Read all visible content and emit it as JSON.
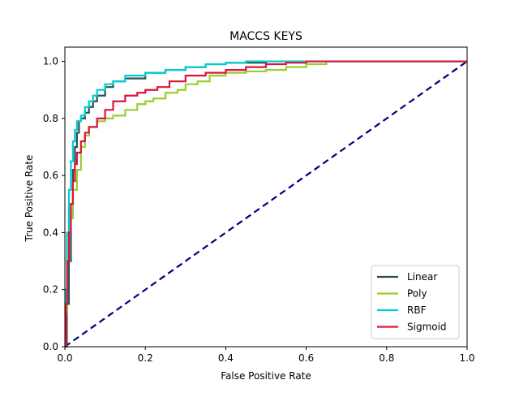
{
  "chart_data": {
    "type": "line",
    "title": "MACCS KEYS",
    "xlabel": "False Positive Rate",
    "ylabel": "True Positive Rate",
    "xlim": [
      0.0,
      1.0
    ],
    "ylim": [
      0.0,
      1.05
    ],
    "x_ticks": [
      0.0,
      0.2,
      0.4,
      0.6,
      0.8,
      1.0
    ],
    "x_tick_labels": [
      "0.0",
      "0.2",
      "0.4",
      "0.6",
      "0.8",
      "1.0"
    ],
    "y_ticks": [
      0.0,
      0.2,
      0.4,
      0.6,
      0.8,
      1.0
    ],
    "y_tick_labels": [
      "0.0",
      "0.2",
      "0.4",
      "0.6",
      "0.8",
      "1.0"
    ],
    "grid": false,
    "legend_position": "lower-right",
    "series": [
      {
        "name": "Linear",
        "color": "#2f4f4f",
        "points": [
          [
            0,
            0
          ],
          [
            0.005,
            0.15
          ],
          [
            0.01,
            0.3
          ],
          [
            0.015,
            0.5
          ],
          [
            0.02,
            0.62
          ],
          [
            0.025,
            0.7
          ],
          [
            0.03,
            0.75
          ],
          [
            0.035,
            0.79
          ],
          [
            0.04,
            0.8
          ],
          [
            0.05,
            0.82
          ],
          [
            0.06,
            0.84
          ],
          [
            0.07,
            0.86
          ],
          [
            0.08,
            0.88
          ],
          [
            0.1,
            0.91
          ],
          [
            0.12,
            0.93
          ],
          [
            0.15,
            0.94
          ],
          [
            0.2,
            0.96
          ],
          [
            0.25,
            0.97
          ],
          [
            0.3,
            0.98
          ],
          [
            0.35,
            0.99
          ],
          [
            0.4,
            0.995
          ],
          [
            0.5,
            1.0
          ],
          [
            0.6,
            1.0
          ],
          [
            1.0,
            1.0
          ]
        ]
      },
      {
        "name": "Poly",
        "color": "#9acd32",
        "points": [
          [
            0,
            0
          ],
          [
            0.003,
            0.12
          ],
          [
            0.006,
            0.3
          ],
          [
            0.01,
            0.45
          ],
          [
            0.02,
            0.55
          ],
          [
            0.03,
            0.62
          ],
          [
            0.04,
            0.7
          ],
          [
            0.05,
            0.74
          ],
          [
            0.06,
            0.77
          ],
          [
            0.08,
            0.79
          ],
          [
            0.1,
            0.8
          ],
          [
            0.12,
            0.81
          ],
          [
            0.15,
            0.83
          ],
          [
            0.18,
            0.85
          ],
          [
            0.2,
            0.86
          ],
          [
            0.22,
            0.87
          ],
          [
            0.25,
            0.89
          ],
          [
            0.28,
            0.9
          ],
          [
            0.3,
            0.92
          ],
          [
            0.33,
            0.93
          ],
          [
            0.36,
            0.95
          ],
          [
            0.4,
            0.96
          ],
          [
            0.45,
            0.965
          ],
          [
            0.5,
            0.97
          ],
          [
            0.55,
            0.98
          ],
          [
            0.6,
            0.99
          ],
          [
            0.65,
            1.0
          ],
          [
            1.0,
            1.0
          ]
        ]
      },
      {
        "name": "RBF",
        "color": "#00ced1",
        "points": [
          [
            0,
            0
          ],
          [
            0.002,
            0.2
          ],
          [
            0.005,
            0.4
          ],
          [
            0.01,
            0.55
          ],
          [
            0.015,
            0.65
          ],
          [
            0.02,
            0.72
          ],
          [
            0.025,
            0.76
          ],
          [
            0.03,
            0.79
          ],
          [
            0.04,
            0.81
          ],
          [
            0.05,
            0.84
          ],
          [
            0.06,
            0.86
          ],
          [
            0.07,
            0.88
          ],
          [
            0.08,
            0.9
          ],
          [
            0.1,
            0.92
          ],
          [
            0.12,
            0.93
          ],
          [
            0.15,
            0.95
          ],
          [
            0.2,
            0.96
          ],
          [
            0.25,
            0.97
          ],
          [
            0.3,
            0.98
          ],
          [
            0.35,
            0.99
          ],
          [
            0.4,
            0.995
          ],
          [
            0.45,
            1.0
          ],
          [
            1.0,
            1.0
          ]
        ]
      },
      {
        "name": "Sigmoid",
        "color": "#dc143c",
        "points": [
          [
            0,
            0
          ],
          [
            0.003,
            0.15
          ],
          [
            0.006,
            0.3
          ],
          [
            0.01,
            0.4
          ],
          [
            0.015,
            0.5
          ],
          [
            0.02,
            0.58
          ],
          [
            0.025,
            0.64
          ],
          [
            0.03,
            0.68
          ],
          [
            0.04,
            0.72
          ],
          [
            0.05,
            0.75
          ],
          [
            0.06,
            0.77
          ],
          [
            0.08,
            0.8
          ],
          [
            0.1,
            0.83
          ],
          [
            0.12,
            0.86
          ],
          [
            0.15,
            0.88
          ],
          [
            0.18,
            0.89
          ],
          [
            0.2,
            0.9
          ],
          [
            0.23,
            0.91
          ],
          [
            0.26,
            0.93
          ],
          [
            0.3,
            0.95
          ],
          [
            0.35,
            0.96
          ],
          [
            0.4,
            0.97
          ],
          [
            0.45,
            0.98
          ],
          [
            0.5,
            0.99
          ],
          [
            0.55,
            0.995
          ],
          [
            0.6,
            1.0
          ],
          [
            1.0,
            1.0
          ]
        ]
      }
    ],
    "diagonal": {
      "color": "#000080",
      "points": [
        [
          0,
          0
        ],
        [
          1,
          1
        ]
      ]
    }
  }
}
